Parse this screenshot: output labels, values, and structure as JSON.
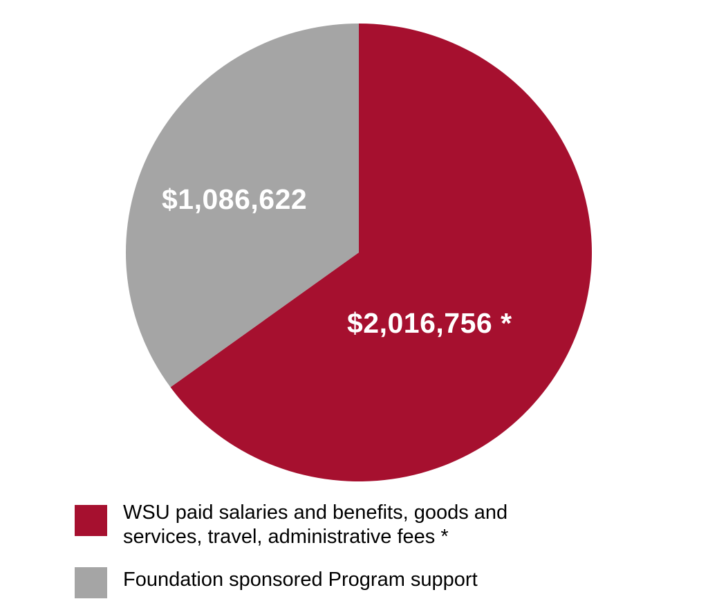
{
  "chart_data": {
    "type": "pie",
    "title": "",
    "slices": [
      {
        "label": "WSU paid salaries and benefits, goods and services, travel, administrative fees *",
        "value": 2016756,
        "display": "$2,016,756 *",
        "color": "#a6102f"
      },
      {
        "label": "Foundation sponsored Program support",
        "value": 1086622,
        "display": "$1,086,622",
        "color": "#a5a5a5"
      }
    ],
    "legend_position": "bottom"
  },
  "legend": {
    "items": [
      {
        "line1": "WSU paid salaries and benefits, goods and",
        "line2": "services, travel, administrative fees *",
        "color": "#a6102f"
      },
      {
        "line1": "Foundation sponsored Program support",
        "color": "#a5a5a5"
      }
    ]
  },
  "labels": {
    "red": "$2,016,756 *",
    "grey": "$1,086,622"
  }
}
